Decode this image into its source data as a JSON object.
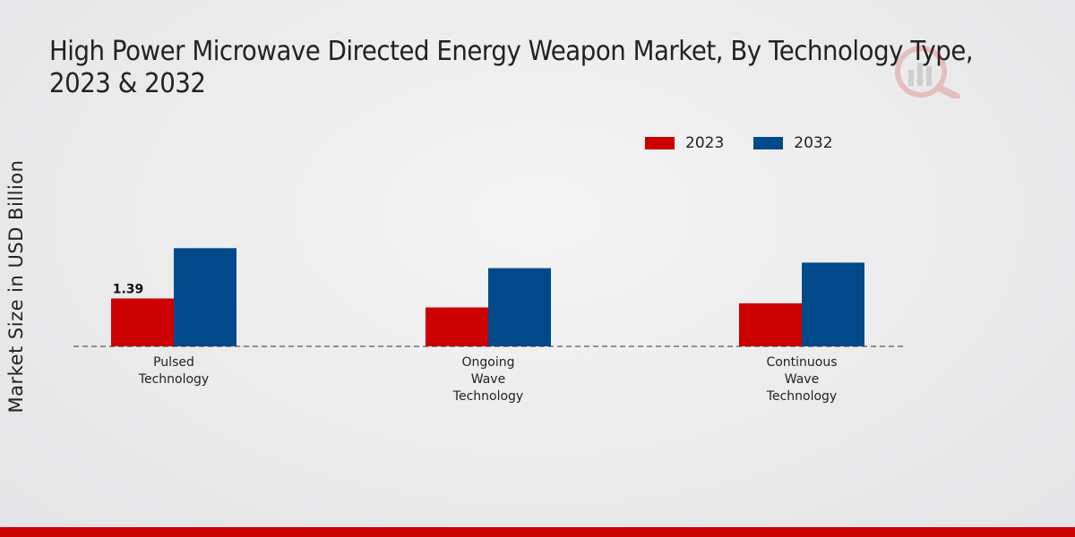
{
  "chart_data": {
    "type": "bar",
    "title_lines": [
      "High Power Microwave Directed Energy Weapon Market, By Technology Type,",
      "2023 & 2032"
    ],
    "xlabel": "",
    "ylabel": "Market Size in USD Billion",
    "categories": [
      [
        "Pulsed",
        "Technology"
      ],
      [
        "Ongoing",
        "Wave",
        "Technology"
      ],
      [
        "Continuous",
        "Wave",
        "Technology"
      ]
    ],
    "series": [
      {
        "name": "2023",
        "color": "#cc0000",
        "values": [
          1.39,
          1.13,
          1.25
        ]
      },
      {
        "name": "2032",
        "color": "#004a8c",
        "values": [
          2.85,
          2.27,
          2.43
        ]
      }
    ],
    "data_labels": [
      {
        "series": 0,
        "index": 0,
        "text": "1.39"
      }
    ],
    "ylim": [
      0,
      6
    ],
    "grid": false,
    "legend_position": "top-right"
  },
  "legend": {
    "item0": "2023",
    "item1": "2032"
  }
}
